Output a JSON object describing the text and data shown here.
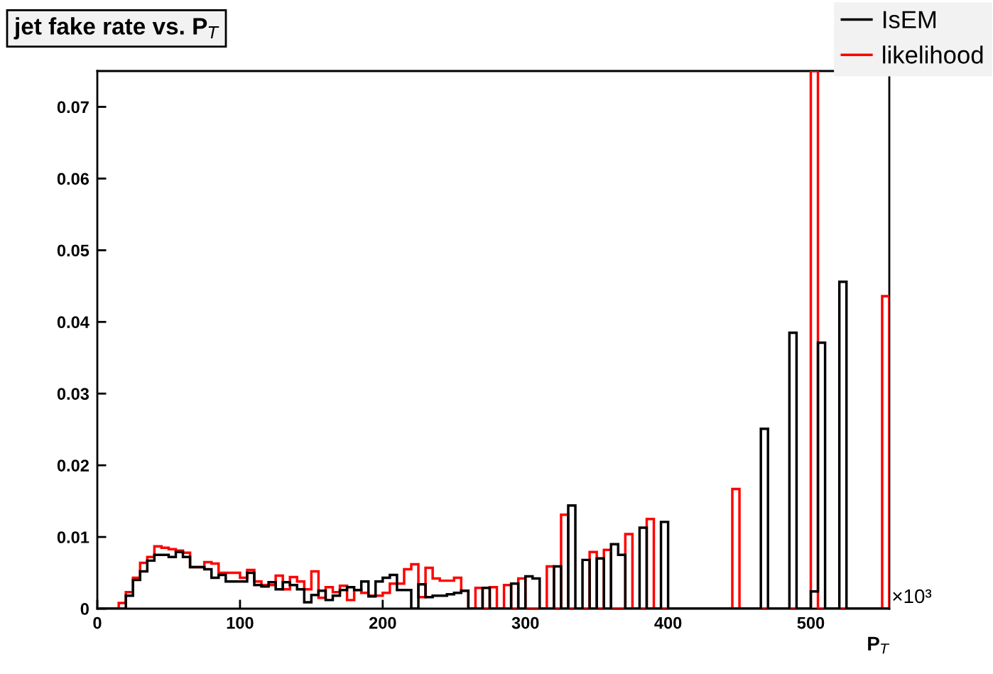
{
  "chart_data": {
    "type": "histogram",
    "title": "jet fake rate vs. P$_{T}$",
    "xlabel": "P$_{T}$",
    "annotations": [
      "×10³"
    ],
    "bins": [
      0,
      5,
      10,
      15,
      20,
      25,
      30,
      35,
      40,
      45,
      50,
      55,
      60,
      65,
      70,
      75,
      80,
      85,
      90,
      95,
      100,
      105,
      110,
      115,
      120,
      125,
      130,
      135,
      140,
      145,
      150,
      155,
      160,
      165,
      170,
      175,
      180,
      185,
      190,
      195,
      200,
      205,
      210,
      215,
      220,
      225,
      230,
      235,
      240,
      245,
      250,
      255,
      260,
      265,
      270,
      275,
      280,
      285,
      290,
      295,
      300,
      305,
      310,
      315,
      320,
      325,
      330,
      335,
      340,
      345,
      350,
      355,
      360,
      365,
      370,
      375,
      380,
      385,
      390,
      395,
      400,
      405,
      410,
      415,
      420,
      425,
      430,
      435,
      440,
      445,
      450,
      455,
      460,
      465,
      470,
      475,
      480,
      485,
      490,
      495,
      500,
      505,
      510,
      515,
      520,
      525,
      530,
      535,
      540,
      545,
      550,
      555
    ],
    "series": [
      {
        "name": "IsEM",
        "color": "#000000",
        "values": [
          0,
          0,
          0,
          0,
          0.0018,
          0.004,
          0.0052,
          0.0067,
          0.0075,
          0.0075,
          0.0072,
          0.0079,
          0.0072,
          0.0058,
          0.0058,
          0.0055,
          0.0043,
          0.0047,
          0.0038,
          0.0038,
          0.0038,
          0.005,
          0.0033,
          0.0031,
          0.0037,
          0.0027,
          0.0037,
          0.0033,
          0.0027,
          0.0009,
          0.0019,
          0.0025,
          0.0012,
          0.0018,
          0.0026,
          0.003,
          0.0026,
          0.0038,
          0.0017,
          0.0038,
          0.0043,
          0.0047,
          0.0026,
          0.0026,
          0,
          0.0034,
          0.0016,
          0.0018,
          0.0018,
          0.002,
          0.0022,
          0.0025,
          0,
          0,
          0.0029,
          0,
          0,
          0,
          0.0035,
          0,
          0.0045,
          0.0042,
          0,
          0,
          0.0059,
          0,
          0.0144,
          0,
          0.0068,
          0,
          0.007,
          0,
          0.009,
          0.0075,
          0,
          0,
          0.0113,
          0,
          0,
          0.0121,
          0,
          0,
          0,
          0,
          0,
          0,
          0,
          0,
          0,
          0,
          0,
          0,
          0,
          0.0251,
          0,
          0,
          0,
          0.0385,
          0,
          0,
          0.0024,
          0.0371,
          0,
          0,
          0.0456,
          0,
          0,
          0,
          0,
          0,
          0
        ]
      },
      {
        "name": "likelihood",
        "color": "#ff0000",
        "values": [
          0,
          0,
          0,
          0.0008,
          0.0023,
          0.0043,
          0.0064,
          0.0072,
          0.0087,
          0.0085,
          0.0083,
          0.0081,
          0.0078,
          0.0058,
          0.0058,
          0.0065,
          0.0063,
          0.005,
          0.005,
          0.005,
          0.0043,
          0.0054,
          0.0038,
          0.0033,
          0.0033,
          0.0046,
          0.0027,
          0.0044,
          0.0038,
          0.0027,
          0.0052,
          0.0015,
          0.003,
          0.0023,
          0.0032,
          0.0012,
          0.0026,
          0.0022,
          0.0018,
          0.0018,
          0.0022,
          0.0035,
          0.0035,
          0.0055,
          0.0062,
          0.0016,
          0.0057,
          0.0042,
          0.0039,
          0.0039,
          0.0043,
          0.0025,
          0,
          0.0029,
          0,
          0.003,
          0,
          0.0033,
          0,
          0.0042,
          0,
          0,
          0,
          0.0059,
          0,
          0.0131,
          0,
          0,
          0,
          0.0079,
          0,
          0.0082,
          0,
          0,
          0.0104,
          0,
          0,
          0.0125,
          0,
          0,
          0,
          0,
          0,
          0,
          0,
          0,
          0,
          0,
          0,
          0.0167,
          0,
          0,
          0,
          0,
          0,
          0,
          0,
          0,
          0,
          0,
          0.075,
          0,
          0,
          0,
          0,
          0,
          0,
          0,
          0,
          0,
          0.0436
        ]
      }
    ],
    "xlim": [
      0,
      555
    ],
    "xticks": [
      0,
      100,
      200,
      300,
      400,
      500
    ],
    "ylim": [
      0,
      0.075
    ],
    "yticks": [
      0,
      0.01,
      0.02,
      0.03,
      0.04,
      0.05,
      0.06,
      0.07
    ],
    "grid": false,
    "legend": "top right"
  }
}
